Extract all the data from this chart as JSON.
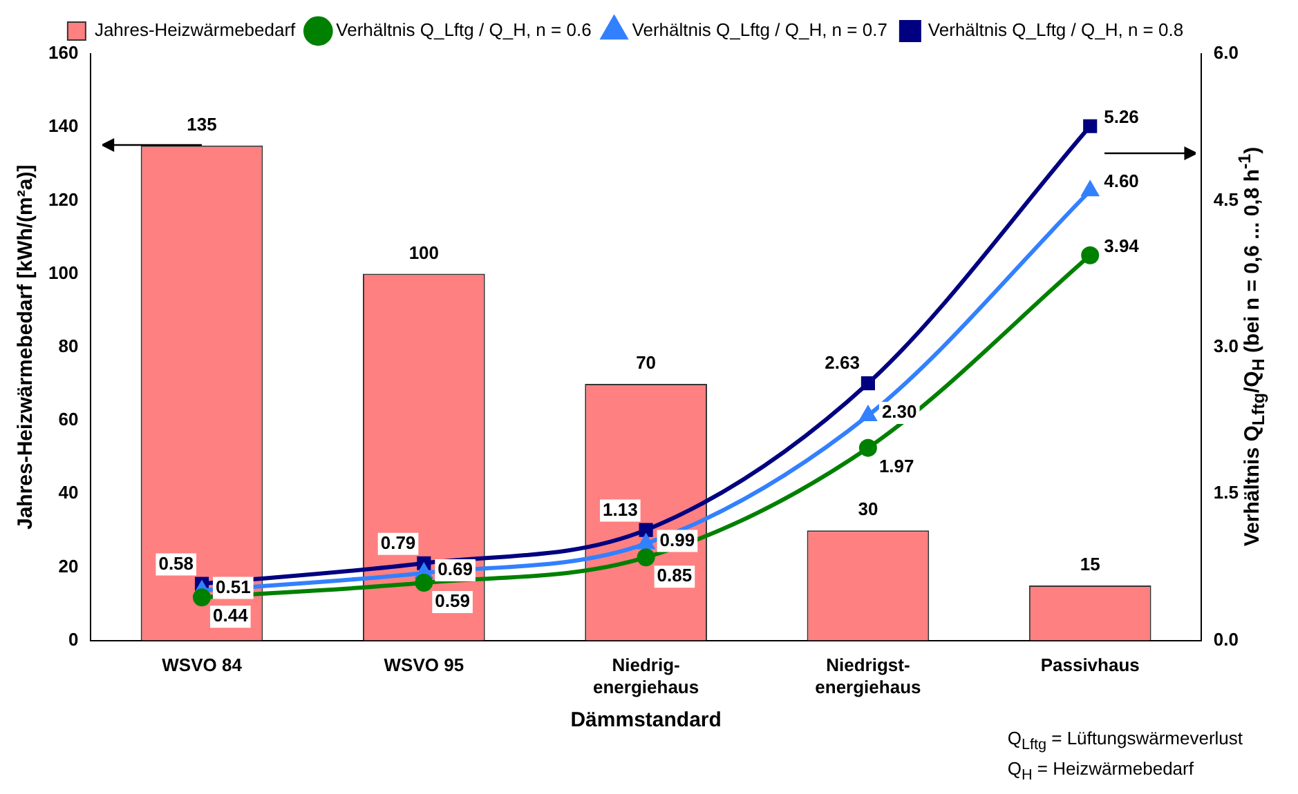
{
  "chart_data": {
    "type": "bar",
    "categories": [
      "WSVO 84",
      "WSVO 95",
      "Niedrig-energiehaus",
      "Niedrigst-energiehaus",
      "Passivhaus"
    ],
    "xlabel": "Dämmstandard",
    "ylabel": "Jahres-Heizwärmebedarf [kWh/(m²a)]",
    "y2label": "Verhältnis Q$_{Lftg}$/Q$_{H}$ (bei n = 0,6 ... 0,8 h$^{-1}$)",
    "ylim": [
      0,
      160
    ],
    "yticks": [
      0,
      20,
      40,
      60,
      80,
      100,
      120,
      140,
      160
    ],
    "y2lim": [
      0,
      6
    ],
    "y2ticks": [
      {
        "value": 0,
        "label": "0.0"
      },
      {
        "value": 1.5,
        "label": "1.5"
      },
      {
        "value": 3,
        "label": "3.0"
      },
      {
        "value": 4.5,
        "label": "4.5"
      },
      {
        "value": 6,
        "label": "6.0"
      }
    ],
    "legend": "top",
    "series": [
      {
        "name": "Jahres-Heizwärmebedarf",
        "color": "#ff8080",
        "values": [
          135,
          100,
          70,
          30,
          15
        ],
        "value_labels": [
          "135",
          "100",
          "70",
          "30",
          "15"
        ]
      },
      {
        "name": "Verhältnis Q_Lftg / Q_H, n = 0.6",
        "type": "line",
        "axis": "y2",
        "marker": "circle",
        "color": "#008000",
        "values": [
          0.44,
          0.59,
          0.85,
          1.97,
          3.94
        ],
        "value_labels": [
          "0.44",
          "0.59",
          "0.85",
          "1.97",
          "3.94"
        ]
      },
      {
        "name": "Verhältnis Q_Lftg / Q_H, n = 0.7",
        "type": "line",
        "axis": "y2",
        "marker": "triangle",
        "color": "#3380ff",
        "values": [
          0.51,
          0.69,
          0.99,
          2.3,
          4.6
        ],
        "value_labels": [
          "0.51",
          "0.69",
          "0.99",
          "2.30",
          "4.60"
        ]
      },
      {
        "name": "Verhältnis Q_Lftg / Q_H, n = 0.8",
        "type": "line",
        "axis": "y2",
        "marker": "square",
        "color": "#000080",
        "values": [
          0.58,
          0.79,
          1.13,
          2.63,
          5.26
        ],
        "value_labels": [
          "0.58",
          "0.79",
          "1.13",
          "2.63",
          "5.26"
        ]
      }
    ],
    "annotations": [
      "Q$_{Lftg}$ = Lüftungswärmeverlust",
      "Q$_{H}$ = Heizwärmebedarf"
    ]
  }
}
